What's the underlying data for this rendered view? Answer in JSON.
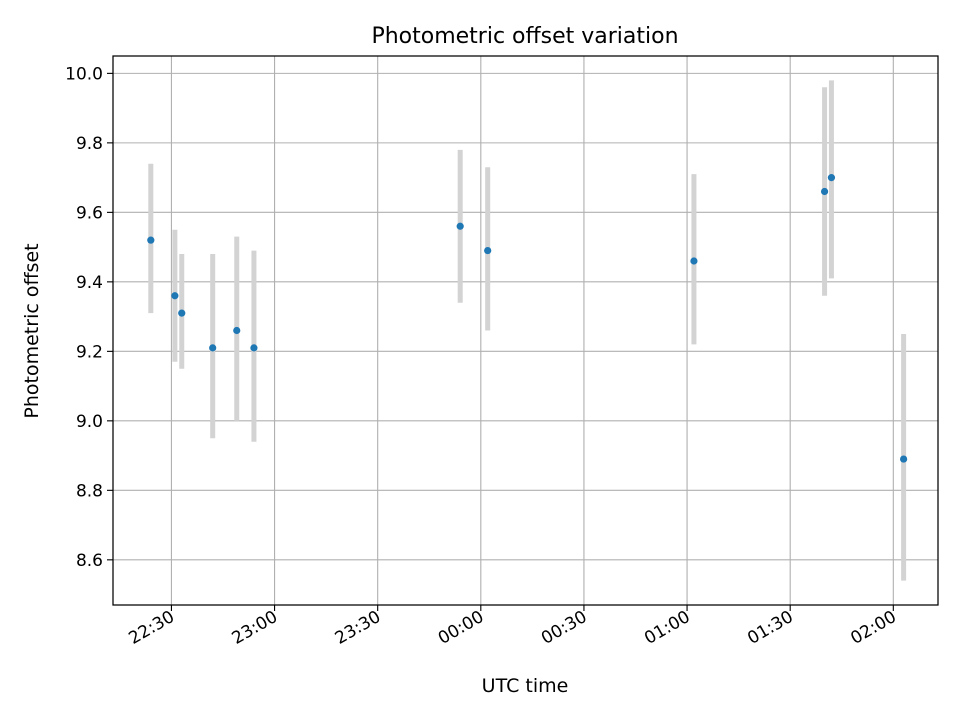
{
  "chart_data": {
    "type": "scatter",
    "title": "Photometric offset variation",
    "xlabel": "UTC time",
    "ylabel": "Photometric offset",
    "xlim": [
      "22:13",
      "02:13"
    ],
    "ylim": [
      8.47,
      10.05
    ],
    "x_ticks": [
      {
        "time": "22:30",
        "label": "22:30"
      },
      {
        "time": "23:00",
        "label": "23:00"
      },
      {
        "time": "23:30",
        "label": "23:30"
      },
      {
        "time": "00:00",
        "label": "00:00"
      },
      {
        "time": "00:30",
        "label": "00:30"
      },
      {
        "time": "01:00",
        "label": "01:00"
      },
      {
        "time": "01:30",
        "label": "01:30"
      },
      {
        "time": "02:00",
        "label": "02:00"
      }
    ],
    "y_ticks": [
      {
        "value": 8.6,
        "label": "8.6"
      },
      {
        "value": 8.8,
        "label": "8.8"
      },
      {
        "value": 9.0,
        "label": "9.0"
      },
      {
        "value": 9.2,
        "label": "9.2"
      },
      {
        "value": 9.4,
        "label": "9.4"
      },
      {
        "value": 9.6,
        "label": "9.6"
      },
      {
        "value": 9.8,
        "label": "9.8"
      },
      {
        "value": 10.0,
        "label": "10.0"
      }
    ],
    "grid": true,
    "point_color": "#1f77b4",
    "errorbar_color": "#d3d3d3",
    "points": [
      {
        "time": "22:24",
        "y": 9.52,
        "err_low": 9.31,
        "err_high": 9.74
      },
      {
        "time": "22:31",
        "y": 9.36,
        "err_low": 9.17,
        "err_high": 9.55
      },
      {
        "time": "22:33",
        "y": 9.31,
        "err_low": 9.15,
        "err_high": 9.48
      },
      {
        "time": "22:42",
        "y": 9.21,
        "err_low": 8.95,
        "err_high": 9.48
      },
      {
        "time": "22:49",
        "y": 9.26,
        "err_low": 9.0,
        "err_high": 9.53
      },
      {
        "time": "22:54",
        "y": 9.21,
        "err_low": 8.94,
        "err_high": 9.49
      },
      {
        "time": "23:54",
        "y": 9.56,
        "err_low": 9.34,
        "err_high": 9.78
      },
      {
        "time": "00:02",
        "y": 9.49,
        "err_low": 9.26,
        "err_high": 9.73
      },
      {
        "time": "01:02",
        "y": 9.46,
        "err_low": 9.22,
        "err_high": 9.71
      },
      {
        "time": "01:40",
        "y": 9.66,
        "err_low": 9.36,
        "err_high": 9.96
      },
      {
        "time": "01:42",
        "y": 9.7,
        "err_low": 9.41,
        "err_high": 9.98
      },
      {
        "time": "02:03",
        "y": 8.89,
        "err_low": 8.54,
        "err_high": 9.25
      }
    ]
  }
}
